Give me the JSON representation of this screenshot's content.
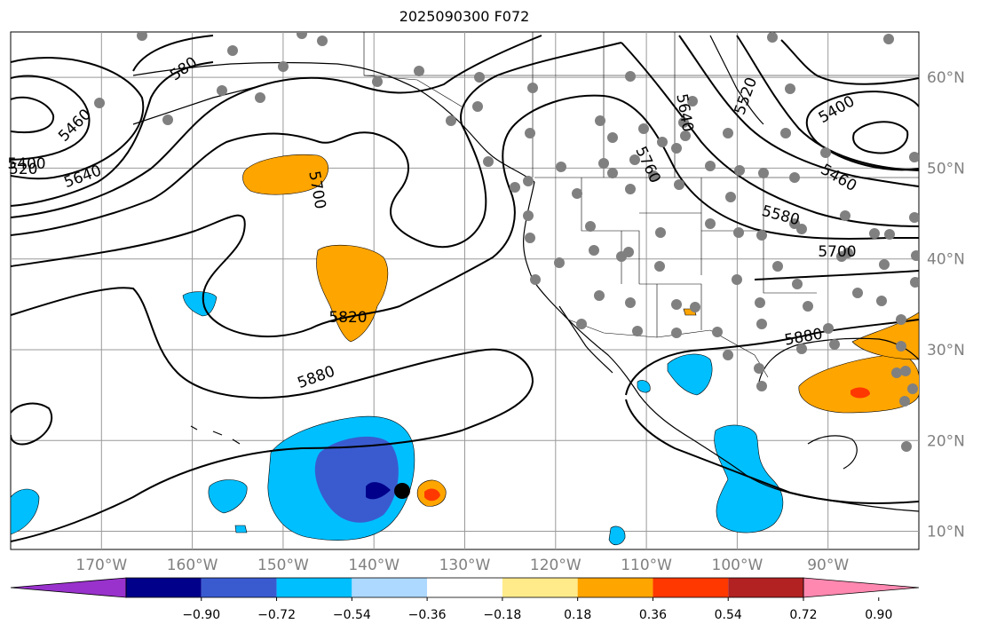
{
  "title": "2025090300 F072",
  "map": {
    "lon_range": [
      -180,
      -80
    ],
    "lat_range": [
      8,
      65
    ],
    "gridlines": true,
    "lon_ticks": [
      "170°W",
      "160°W",
      "150°W",
      "140°W",
      "130°W",
      "120°W",
      "110°W",
      "100°W",
      "90°W"
    ],
    "lat_ticks": [
      "60°N",
      "50°N",
      "40°N",
      "30°N",
      "20°N",
      "10°N"
    ],
    "contour_labels": [
      "5460",
      "5520",
      "5580",
      "5640",
      "5700",
      "5760",
      "5820",
      "5880",
      "5400",
      "520"
    ],
    "station_marker_color": "#808080",
    "storm_marker_color": "#000000"
  },
  "colorbar": {
    "colors": [
      "#9932cc",
      "#00008b",
      "#3a5bd0",
      "#00bfff",
      "#add8ff",
      "#ffffff",
      "#ffeb8a",
      "#ffa500",
      "#ff3800",
      "#b22222",
      "#ff88b0"
    ],
    "tick_labels": [
      "−0.90",
      "−0.72",
      "−0.54",
      "−0.36",
      "−0.18",
      "0.18",
      "0.36",
      "0.54",
      "0.72",
      "0.90"
    ]
  }
}
